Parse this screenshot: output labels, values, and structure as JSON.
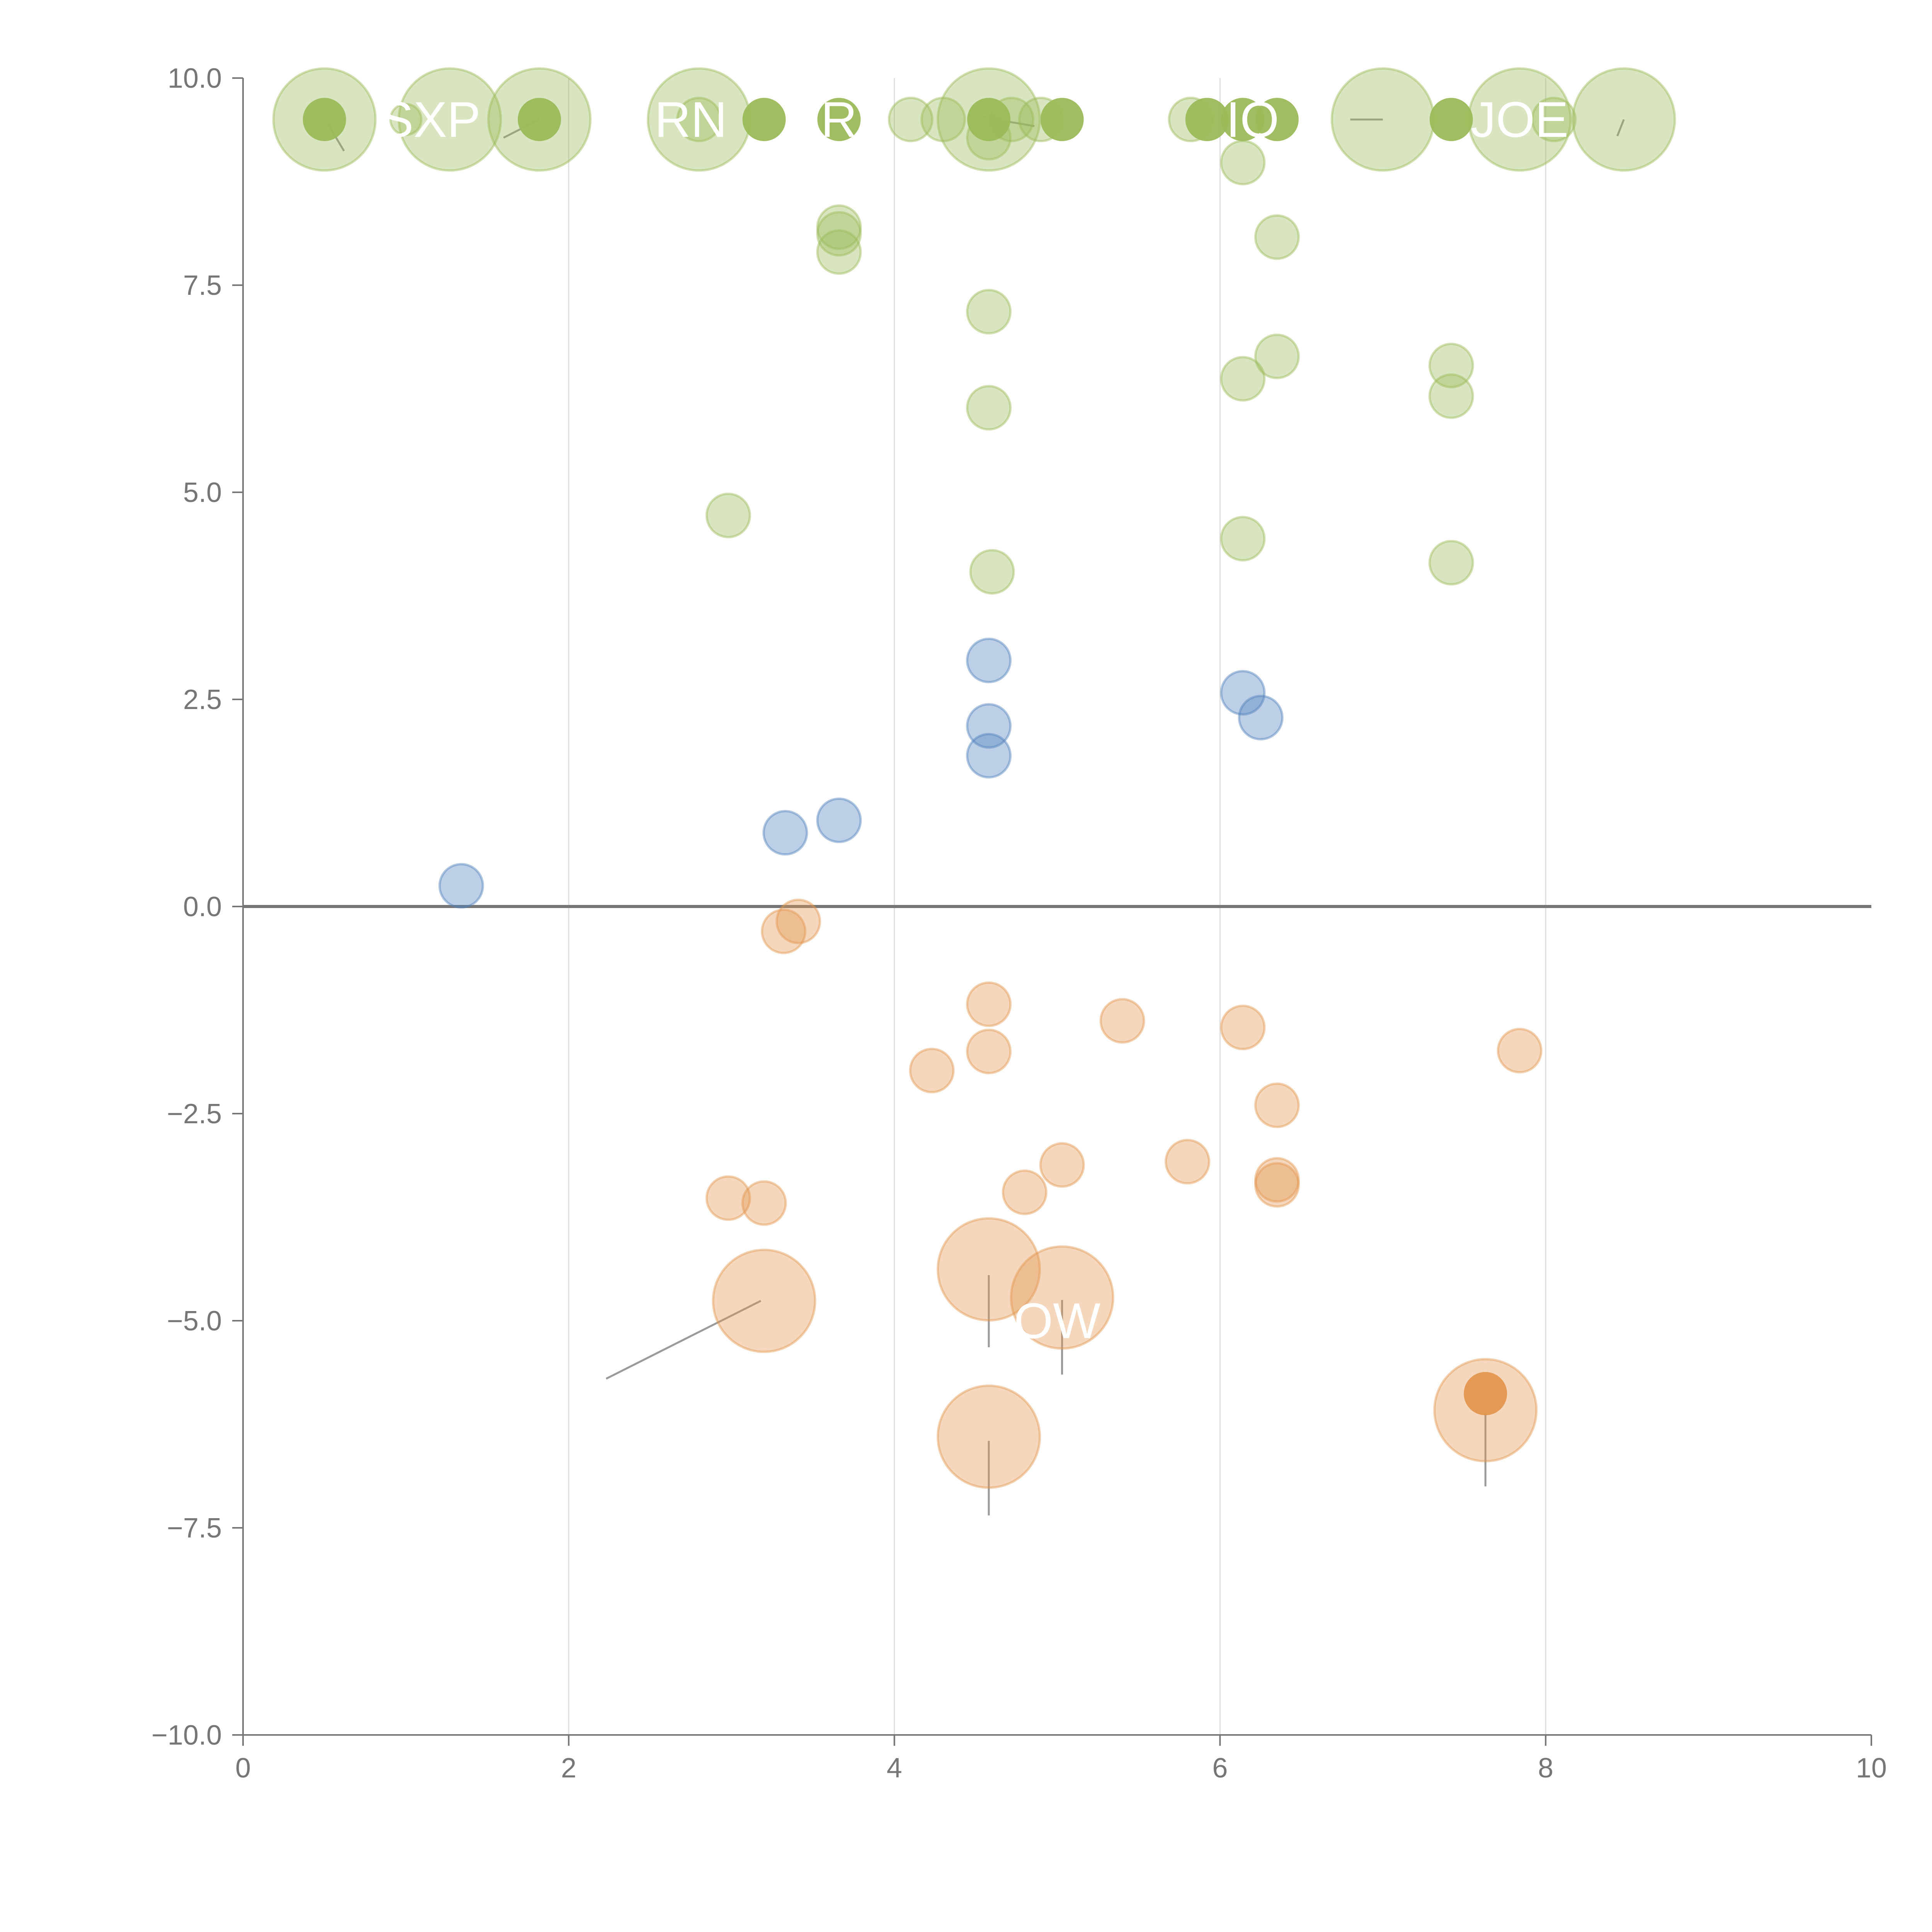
{
  "chart_data": {
    "type": "scatter",
    "title": "",
    "xlabel": "",
    "ylabel": "",
    "xlim": [
      0,
      10
    ],
    "ylim": [
      -10,
      10
    ],
    "x_ticks": [
      0,
      2,
      4,
      6,
      8,
      10
    ],
    "y_ticks": [
      10,
      7.5,
      5,
      2.5,
      0,
      -2.5,
      -5,
      -7.5,
      -10
    ],
    "x_tick_labels": [
      "0",
      "2",
      "4",
      "6",
      "8",
      "10"
    ],
    "y_tick_labels": [
      "10.0",
      "7.5",
      "5.0",
      "2.5",
      "0.0",
      "−2.5",
      "−5.0",
      "−7.5",
      "−10.0"
    ],
    "vertical_gridlines": true,
    "zero_line": true,
    "colors": {
      "green": "#9bbb59",
      "blue": "#4f81bd",
      "orange": "#e3974f",
      "grid": "#dedede",
      "axis": "#767676"
    },
    "series": [
      {
        "name": "high",
        "color": "#9bbb59",
        "points": [
          {
            "x": 0.5,
            "y": 9.5,
            "size": 3.3,
            "dark": false
          },
          {
            "x": 0.5,
            "y": 9.5,
            "size": 1.4,
            "dark": true
          },
          {
            "x": 1.0,
            "y": 9.5,
            "size": 1.0,
            "dark": false
          },
          {
            "x": 1.27,
            "y": 9.5,
            "size": 3.3,
            "dark": false
          },
          {
            "x": 1.82,
            "y": 9.5,
            "size": 3.3,
            "dark": false
          },
          {
            "x": 1.82,
            "y": 9.5,
            "size": 1.4,
            "dark": true
          },
          {
            "x": 2.8,
            "y": 9.5,
            "size": 3.3,
            "dark": false
          },
          {
            "x": 2.8,
            "y": 9.5,
            "size": 1.4,
            "dark": false
          },
          {
            "x": 3.2,
            "y": 9.5,
            "size": 1.4,
            "dark": true
          },
          {
            "x": 3.66,
            "y": 9.5,
            "size": 1.4,
            "dark": true
          },
          {
            "x": 4.1,
            "y": 9.5,
            "size": 1.4,
            "dark": false
          },
          {
            "x": 4.3,
            "y": 9.5,
            "size": 1.4,
            "dark": false
          },
          {
            "x": 4.58,
            "y": 9.5,
            "size": 3.3,
            "dark": false
          },
          {
            "x": 4.58,
            "y": 9.5,
            "size": 1.4,
            "dark": true
          },
          {
            "x": 4.58,
            "y": 9.28,
            "size": 1.4,
            "dark": false
          },
          {
            "x": 4.72,
            "y": 9.5,
            "size": 1.4,
            "dark": false
          },
          {
            "x": 4.9,
            "y": 9.5,
            "size": 1.4,
            "dark": false
          },
          {
            "x": 5.03,
            "y": 9.5,
            "size": 1.4,
            "dark": true
          },
          {
            "x": 5.82,
            "y": 9.5,
            "size": 1.4,
            "dark": false
          },
          {
            "x": 5.92,
            "y": 9.5,
            "size": 1.4,
            "dark": true
          },
          {
            "x": 6.14,
            "y": 9.5,
            "size": 1.4,
            "dark": true
          },
          {
            "x": 6.35,
            "y": 9.5,
            "size": 1.4,
            "dark": true
          },
          {
            "x": 7.0,
            "y": 9.5,
            "size": 3.3,
            "dark": false
          },
          {
            "x": 7.42,
            "y": 9.5,
            "size": 1.4,
            "dark": true
          },
          {
            "x": 7.84,
            "y": 9.5,
            "size": 3.3,
            "dark": false
          },
          {
            "x": 8.05,
            "y": 9.5,
            "size": 1.4,
            "dark": false
          },
          {
            "x": 8.48,
            "y": 9.5,
            "size": 3.3,
            "dark": false
          },
          {
            "x": 6.14,
            "y": 8.98,
            "size": 1.4,
            "dark": false
          },
          {
            "x": 3.66,
            "y": 8.2,
            "size": 1.4,
            "dark": false
          },
          {
            "x": 3.66,
            "y": 8.12,
            "size": 1.4,
            "dark": false
          },
          {
            "x": 3.66,
            "y": 7.9,
            "size": 1.4,
            "dark": false
          },
          {
            "x": 6.35,
            "y": 8.08,
            "size": 1.4,
            "dark": false
          },
          {
            "x": 4.58,
            "y": 7.18,
            "size": 1.4,
            "dark": false
          },
          {
            "x": 6.35,
            "y": 6.64,
            "size": 1.4,
            "dark": false
          },
          {
            "x": 7.42,
            "y": 6.53,
            "size": 1.4,
            "dark": false
          },
          {
            "x": 6.14,
            "y": 6.37,
            "size": 1.4,
            "dark": false
          },
          {
            "x": 7.42,
            "y": 6.16,
            "size": 1.4,
            "dark": false
          },
          {
            "x": 4.58,
            "y": 6.02,
            "size": 1.4,
            "dark": false
          },
          {
            "x": 2.98,
            "y": 4.72,
            "size": 1.4,
            "dark": false
          },
          {
            "x": 6.14,
            "y": 4.44,
            "size": 1.4,
            "dark": false
          },
          {
            "x": 7.42,
            "y": 4.15,
            "size": 1.4,
            "dark": false
          },
          {
            "x": 4.6,
            "y": 4.04,
            "size": 1.4,
            "dark": false
          }
        ]
      },
      {
        "name": "mid",
        "color": "#4f81bd",
        "points": [
          {
            "x": 4.58,
            "y": 2.97,
            "size": 1.4,
            "dark": false
          },
          {
            "x": 6.14,
            "y": 2.58,
            "size": 1.4,
            "dark": false
          },
          {
            "x": 6.25,
            "y": 2.28,
            "size": 1.4,
            "dark": false
          },
          {
            "x": 4.58,
            "y": 2.18,
            "size": 1.4,
            "dark": false
          },
          {
            "x": 4.58,
            "y": 1.82,
            "size": 1.4,
            "dark": false
          },
          {
            "x": 3.66,
            "y": 1.04,
            "size": 1.4,
            "dark": false
          },
          {
            "x": 3.33,
            "y": 0.89,
            "size": 1.4,
            "dark": false
          },
          {
            "x": 1.34,
            "y": 0.25,
            "size": 1.4,
            "dark": false
          }
        ]
      },
      {
        "name": "low",
        "color": "#e3974f",
        "points": [
          {
            "x": 3.41,
            "y": -0.18,
            "size": 1.4,
            "dark": false
          },
          {
            "x": 3.32,
            "y": -0.3,
            "size": 1.4,
            "dark": false
          },
          {
            "x": 4.58,
            "y": -1.18,
            "size": 1.4,
            "dark": false
          },
          {
            "x": 5.4,
            "y": -1.38,
            "size": 1.4,
            "dark": false
          },
          {
            "x": 6.14,
            "y": -1.46,
            "size": 1.4,
            "dark": false
          },
          {
            "x": 4.58,
            "y": -1.75,
            "size": 1.4,
            "dark": false
          },
          {
            "x": 7.84,
            "y": -1.74,
            "size": 1.4,
            "dark": false
          },
          {
            "x": 4.23,
            "y": -1.98,
            "size": 1.4,
            "dark": false
          },
          {
            "x": 6.35,
            "y": -2.4,
            "size": 1.4,
            "dark": false
          },
          {
            "x": 5.8,
            "y": -3.08,
            "size": 1.4,
            "dark": false
          },
          {
            "x": 5.03,
            "y": -3.12,
            "size": 1.4,
            "dark": false
          },
          {
            "x": 6.35,
            "y": -3.3,
            "size": 1.4,
            "dark": false
          },
          {
            "x": 6.35,
            "y": -3.36,
            "size": 1.4,
            "dark": false
          },
          {
            "x": 4.8,
            "y": -3.45,
            "size": 1.4,
            "dark": false
          },
          {
            "x": 2.98,
            "y": -3.52,
            "size": 1.4,
            "dark": false
          },
          {
            "x": 3.2,
            "y": -3.58,
            "size": 1.4,
            "dark": false
          },
          {
            "x": 4.58,
            "y": -4.38,
            "size": 3.3,
            "dark": false
          },
          {
            "x": 5.03,
            "y": -4.72,
            "size": 3.3,
            "dark": false
          },
          {
            "x": 3.2,
            "y": -4.76,
            "size": 3.3,
            "dark": false
          },
          {
            "x": 7.63,
            "y": -6.08,
            "size": 3.3,
            "dark": false
          },
          {
            "x": 7.63,
            "y": -5.88,
            "size": 1.4,
            "dark": true
          },
          {
            "x": 4.58,
            "y": -6.4,
            "size": 3.3,
            "dark": false
          }
        ]
      }
    ],
    "annotations": [
      {
        "text": "SXP",
        "x": 1.15,
        "y": 9.5
      },
      {
        "text": "RN",
        "x": 2.75,
        "y": 9.5
      },
      {
        "text": "R",
        "x": 3.66,
        "y": 9.5
      },
      {
        "text": "IO",
        "x": 6.2,
        "y": 9.5
      },
      {
        "text": "JOE",
        "x": 7.84,
        "y": 9.5
      },
      {
        "text": "OW",
        "x": 5.0,
        "y": -5.0
      }
    ],
    "leader_lines": [
      {
        "x1": 0.52,
        "y1": 9.45,
        "x2": 0.62,
        "y2": 9.12
      },
      {
        "x1": 1.82,
        "y1": 9.5,
        "x2": 1.6,
        "y2": 9.28
      },
      {
        "x1": 4.62,
        "y1": 9.5,
        "x2": 4.86,
        "y2": 9.42
      },
      {
        "x1": 6.8,
        "y1": 9.5,
        "x2": 7.0,
        "y2": 9.5
      },
      {
        "x1": 8.48,
        "y1": 9.5,
        "x2": 8.44,
        "y2": 9.3
      },
      {
        "x1": 3.18,
        "y1": -4.76,
        "x2": 2.23,
        "y2": -5.7
      },
      {
        "x1": 4.58,
        "y1": -4.45,
        "x2": 4.58,
        "y2": -5.32
      },
      {
        "x1": 5.03,
        "y1": -4.75,
        "x2": 5.03,
        "y2": -5.65
      },
      {
        "x1": 4.58,
        "y1": -6.45,
        "x2": 4.58,
        "y2": -7.35
      },
      {
        "x1": 7.63,
        "y1": -6.1,
        "x2": 7.63,
        "y2": -7.0
      }
    ]
  }
}
